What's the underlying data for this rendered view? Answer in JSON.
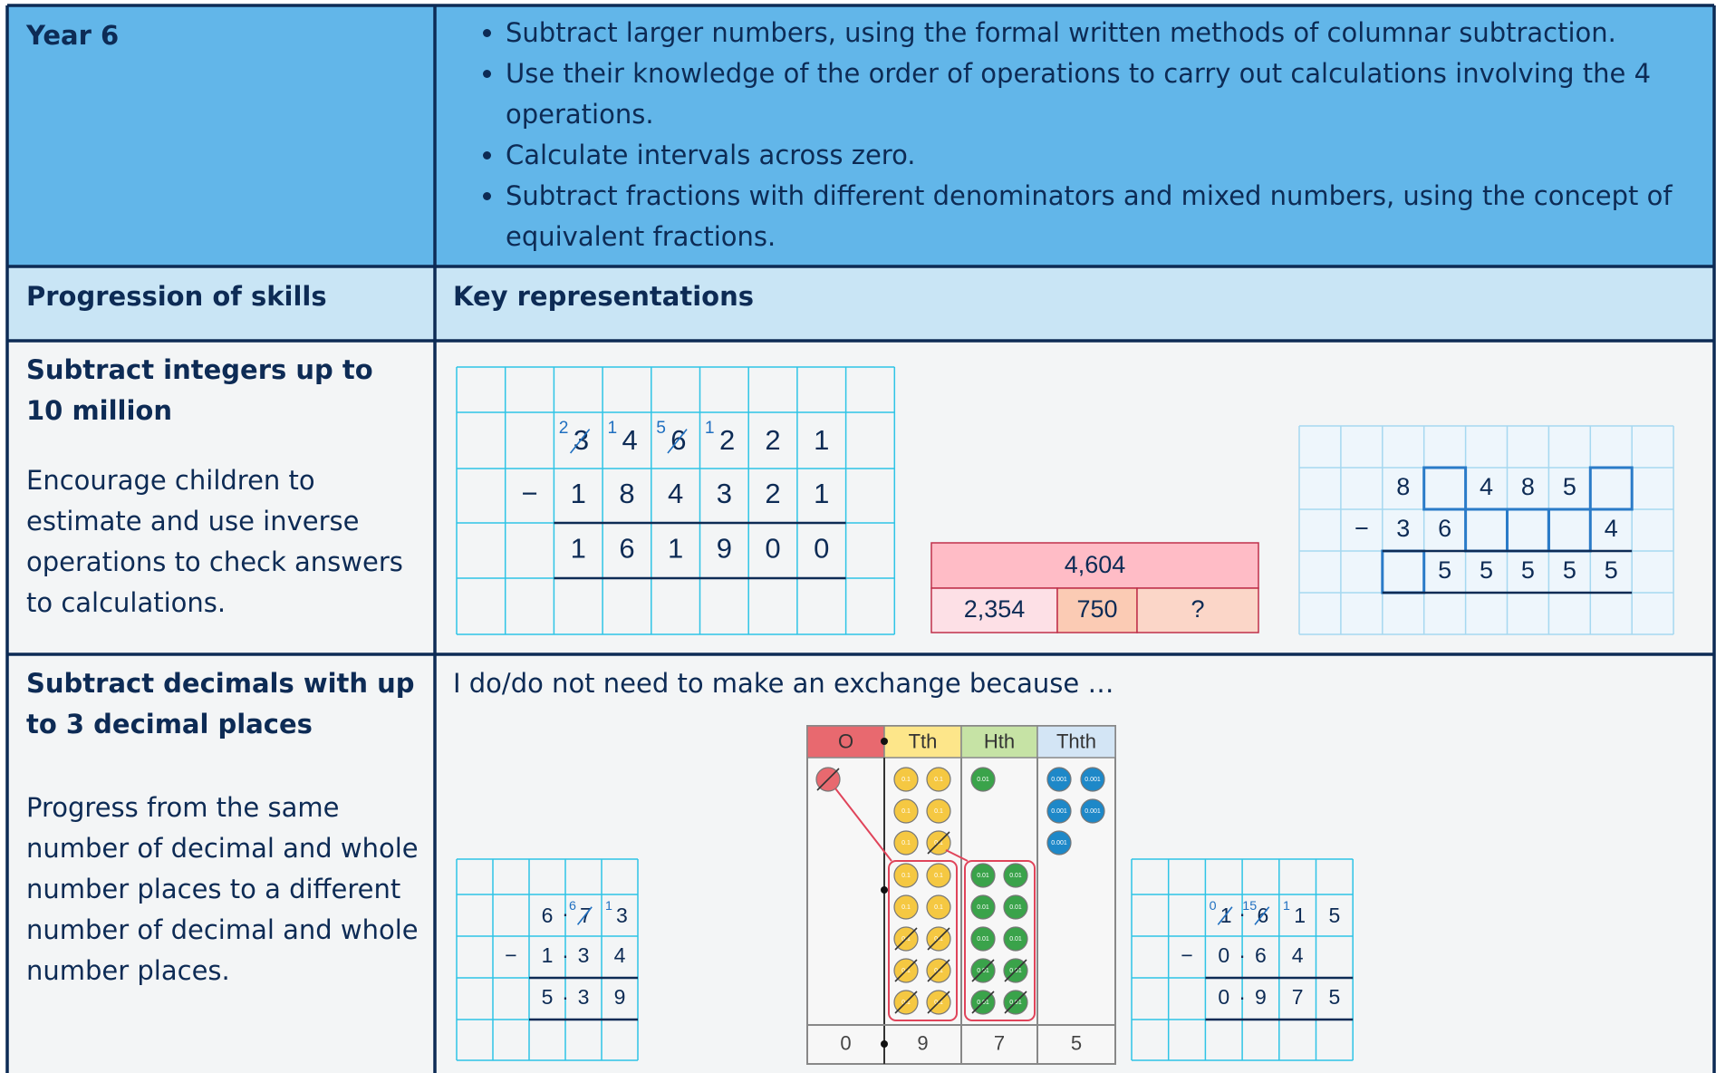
{
  "header": {
    "year": "Year 6",
    "objectives": [
      "Subtract larger numbers, using the formal written methods of columnar subtraction.",
      "Use their knowledge of the order of operations to carry out calculations involving the 4 operations.",
      "Calculate intervals across zero.",
      "Subtract fractions with different denominators and mixed numbers, using the concept of equivalent fractions."
    ]
  },
  "columns": {
    "skills": "Progression of skills",
    "representations": "Key representations"
  },
  "rows": [
    {
      "title": "Subtract integers up to 10 million",
      "note": "Encourage children to estimate and use inverse operations to check answers to calculations.",
      "column_subtraction": {
        "operator": "−",
        "top": [
          {
            "digit": "3",
            "exchange": "2",
            "crossed": true
          },
          {
            "digit": "4",
            "exchange": "1"
          },
          {
            "digit": "6",
            "exchange": "5",
            "crossed": true
          },
          {
            "digit": "2",
            "exchange": "1"
          },
          {
            "digit": "2"
          },
          {
            "digit": "1"
          }
        ],
        "subtract": [
          "1",
          "8",
          "4",
          "3",
          "2",
          "1"
        ],
        "answer": [
          "1",
          "6",
          "1",
          "9",
          "0",
          "0"
        ]
      },
      "bar_model": {
        "total": "4,604",
        "parts": [
          "2,354",
          "750",
          "?"
        ]
      },
      "missing_digits": {
        "operator": "−",
        "top": [
          "8",
          null,
          "4",
          "8",
          "5",
          null
        ],
        "subtract": [
          "3",
          "6",
          null,
          null,
          null,
          "4"
        ],
        "answer": [
          null,
          "5",
          "5",
          "5",
          "5",
          "5"
        ]
      }
    },
    {
      "title": "Subtract decimals with up to 3 decimal places",
      "note": "Progress from the same number of decimal and whole number places to a different number of decimal and whole number places.",
      "prompt": "I do/do not need to make an exchange because …",
      "left_subtraction": {
        "operator": "−",
        "decimal_point": "·",
        "top": [
          {
            "digit": "6"
          },
          {
            "digit": "7",
            "exchange": "6",
            "crossed": true
          },
          {
            "digit": "3",
            "exchange": "1"
          }
        ],
        "subtract": [
          "1",
          "3",
          "4"
        ],
        "answer": [
          "5",
          "3",
          "9"
        ]
      },
      "place_value_chart": {
        "headers": [
          "O",
          "Tth",
          "Hth",
          "Thth"
        ],
        "counter_labels": [
          "0.1",
          "0.01",
          "0.001"
        ],
        "digits": [
          "0",
          "9",
          "7",
          "5"
        ]
      },
      "right_subtraction": {
        "operator": "−",
        "decimal_point": "·",
        "top": [
          {
            "digit": "1",
            "exchange": "0",
            "crossed": true
          },
          {
            "digit": "6",
            "exchange": "15",
            "crossed": true
          },
          {
            "digit": "1",
            "exchange": "1"
          },
          {
            "digit": "5"
          }
        ],
        "subtract": [
          "0",
          "6",
          "4"
        ],
        "answer": [
          "0",
          "9",
          "7",
          "5"
        ]
      }
    }
  ]
}
